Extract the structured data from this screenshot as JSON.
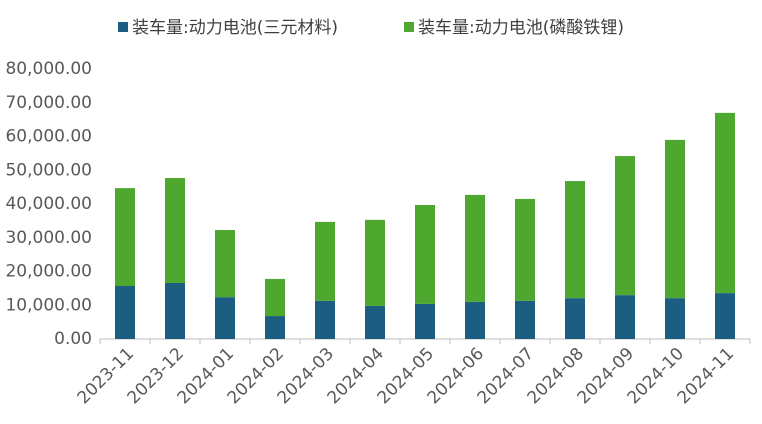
{
  "chart_data": {
    "type": "stacked_bar",
    "categories": [
      "2023-11",
      "2023-12",
      "2024-01",
      "2024-02",
      "2024-03",
      "2024-04",
      "2024-05",
      "2024-06",
      "2024-07",
      "2024-08",
      "2024-09",
      "2024-10",
      "2024-11"
    ],
    "series": [
      {
        "name": "装车量:动力电池(三元材料)",
        "color": "#1b5e82",
        "values": [
          15700,
          16600,
          12400,
          6800,
          11300,
          9800,
          10400,
          11000,
          11300,
          12100,
          13000,
          12100,
          13600
        ]
      },
      {
        "name": "装车量:动力电池(磷酸铁锂)",
        "color": "#4ea72e",
        "values": [
          29000,
          31100,
          19900,
          11000,
          23400,
          25500,
          29300,
          31700,
          30200,
          34700,
          41200,
          46900,
          53400
        ]
      }
    ],
    "ylim": [
      0,
      80000
    ],
    "yticks": [
      {
        "value": 0,
        "label": "0.00"
      },
      {
        "value": 10000,
        "label": "10,000.00"
      },
      {
        "value": 20000,
        "label": "20,000.00"
      },
      {
        "value": 30000,
        "label": "30,000.00"
      },
      {
        "value": 40000,
        "label": "40,000.00"
      },
      {
        "value": 50000,
        "label": "50,000.00"
      },
      {
        "value": 60000,
        "label": "60,000.00"
      },
      {
        "value": 70000,
        "label": "70,000.00"
      },
      {
        "value": 80000,
        "label": "80,000.00"
      }
    ],
    "grid": false,
    "legend": "top"
  }
}
